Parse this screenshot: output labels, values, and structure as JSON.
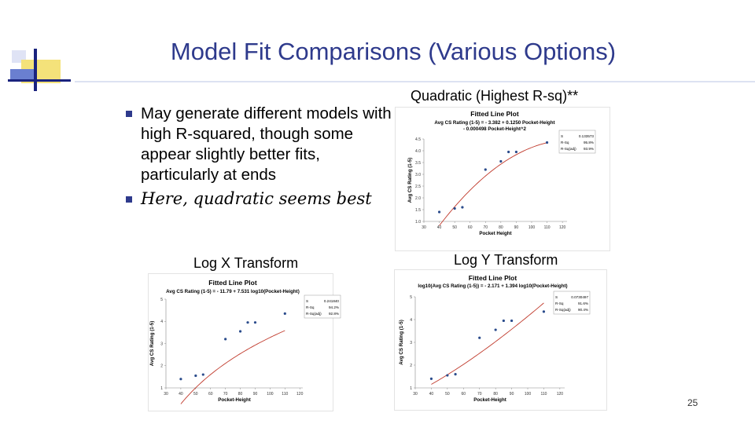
{
  "slide": {
    "title": "Model Fit Comparisons (Various Options)",
    "bullets": [
      "May generate different models with high R-squared, though some appear slightly better fits, particularly at ends",
      "Here, quadratic seems best"
    ],
    "page_number": "25"
  },
  "chart_data": [
    {
      "type": "scatter",
      "caption": "Quadratic (Highest R-sq)**",
      "title": "Fitted Line Plot",
      "subtitle_lines": [
        "Avg CS Rating (1-5) = - 3.382 + 0.1250 Pocket-Height",
        "- 0.000498 Pocket-Height^2"
      ],
      "xlabel": "Pocket Height",
      "ylabel": "Avg CS Rating (1-5)",
      "xlim": [
        30,
        123
      ],
      "ylim": [
        1.0,
        4.5
      ],
      "x_ticks": [
        "30",
        "40",
        "50",
        "60",
        "70",
        "80",
        "90",
        "100",
        "110",
        "120"
      ],
      "y_ticks": [
        "1.0",
        "1.5",
        "2.0",
        "2.5",
        "3.0",
        "3.5",
        "4.0",
        "4.5"
      ],
      "stats": [
        [
          "S",
          "0.133573"
        ],
        [
          "R-Sq",
          "95.8%"
        ],
        [
          "R-Sq(adj)",
          "93.9%"
        ]
      ],
      "points": {
        "x": [
          40,
          50,
          55,
          70,
          80,
          85,
          90,
          110
        ],
        "y": [
          1.4,
          1.55,
          1.6,
          3.2,
          3.55,
          3.95,
          3.95,
          4.35
        ]
      },
      "fit": {
        "kind": "quadratic",
        "coef": [
          -3.382,
          0.125,
          -0.000498
        ]
      }
    },
    {
      "type": "scatter",
      "caption": "Log X Transform",
      "title": "Fitted Line Plot",
      "subtitle_lines": [
        "Avg CS Rating (1-5) = - 11.79 + 7.531 log10(Pocket-Height)"
      ],
      "xlabel": "Pocket-Height",
      "ylabel": "Avg CS Rating (1-5)",
      "xlim": [
        30,
        122
      ],
      "ylim": [
        1,
        5
      ],
      "x_ticks": [
        "30",
        "40",
        "50",
        "60",
        "70",
        "80",
        "90",
        "100",
        "110",
        "120"
      ],
      "y_ticks": [
        "1",
        "2",
        "3",
        "4",
        "5"
      ],
      "stats": [
        [
          "S",
          "0.241840"
        ],
        [
          "R-Sq",
          "94.2%"
        ],
        [
          "R-Sq(adj)",
          "92.8%"
        ]
      ],
      "points": {
        "x": [
          40,
          50,
          55,
          70,
          80,
          85,
          90,
          110
        ],
        "y": [
          1.4,
          1.55,
          1.6,
          3.2,
          3.55,
          3.95,
          3.95,
          4.35
        ]
      },
      "fit": {
        "kind": "log10",
        "coef": [
          -11.79,
          7.531
        ]
      }
    },
    {
      "type": "scatter",
      "caption": "Log Y Transform",
      "title": "Fitted Line Plot",
      "subtitle_lines": [
        "log10(Avg CS Rating (1-5)) = - 2.171 + 1.394 log10(Pocket-Height)"
      ],
      "xlabel": "Pocket-Height",
      "ylabel": "Avg CS Rating (1-5)",
      "xlim": [
        30,
        123
      ],
      "ylim": [
        1,
        5
      ],
      "x_ticks": [
        "30",
        "40",
        "50",
        "60",
        "70",
        "80",
        "90",
        "100",
        "110",
        "120"
      ],
      "y_ticks": [
        "1",
        "2",
        "3",
        "4",
        "5"
      ],
      "stats": [
        [
          "S",
          "0.0730497"
        ],
        [
          "R-Sq",
          "91.6%"
        ],
        [
          "R-Sq(adj)",
          "90.4%"
        ]
      ],
      "points": {
        "x": [
          40,
          50,
          55,
          70,
          80,
          85,
          90,
          110
        ],
        "y": [
          1.4,
          1.55,
          1.6,
          3.2,
          3.55,
          3.95,
          3.95,
          4.35
        ]
      },
      "fit": {
        "kind": "loglog",
        "coef": [
          -2.171,
          1.394
        ]
      }
    }
  ]
}
